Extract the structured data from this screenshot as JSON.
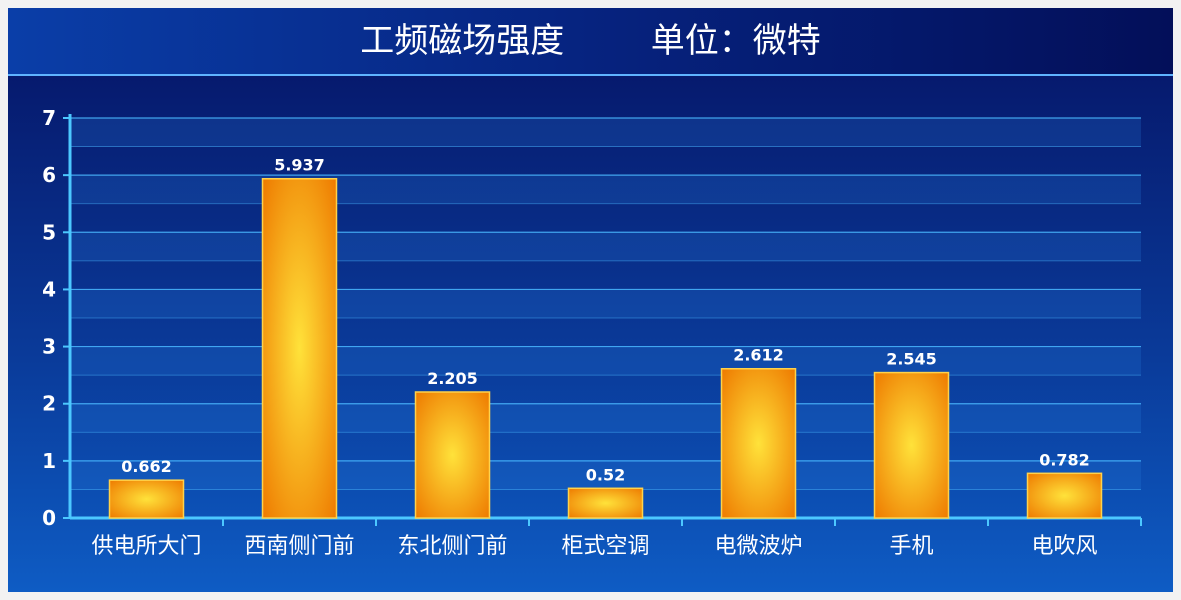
{
  "title": "工频磁场强度        单位：微特",
  "colors": {
    "bar_center": "#ffe23a",
    "bar_edge": "#ee7a00",
    "bar_border": "#ffd24a",
    "grid": "#4ab8ff",
    "axis": "#4cc8ff"
  },
  "chart_data": {
    "type": "bar",
    "title": "工频磁场强度        单位：微特",
    "xlabel": "",
    "ylabel": "",
    "categories": [
      "供电所大门",
      "西南侧门前",
      "东北侧门前",
      "柜式空调",
      "电微波炉",
      "手机",
      "电吹风"
    ],
    "values": [
      0.662,
      5.937,
      2.205,
      0.52,
      2.612,
      2.545,
      0.782
    ],
    "data_labels": [
      "0.662",
      "5.937",
      "2.205",
      "0.52",
      "2.612",
      "2.545",
      "0.782"
    ],
    "ylim": [
      0,
      7
    ],
    "yticks": [
      "0",
      "1",
      "2",
      "3",
      "4",
      "5",
      "6",
      "7"
    ],
    "grid": true,
    "legend": "none"
  }
}
